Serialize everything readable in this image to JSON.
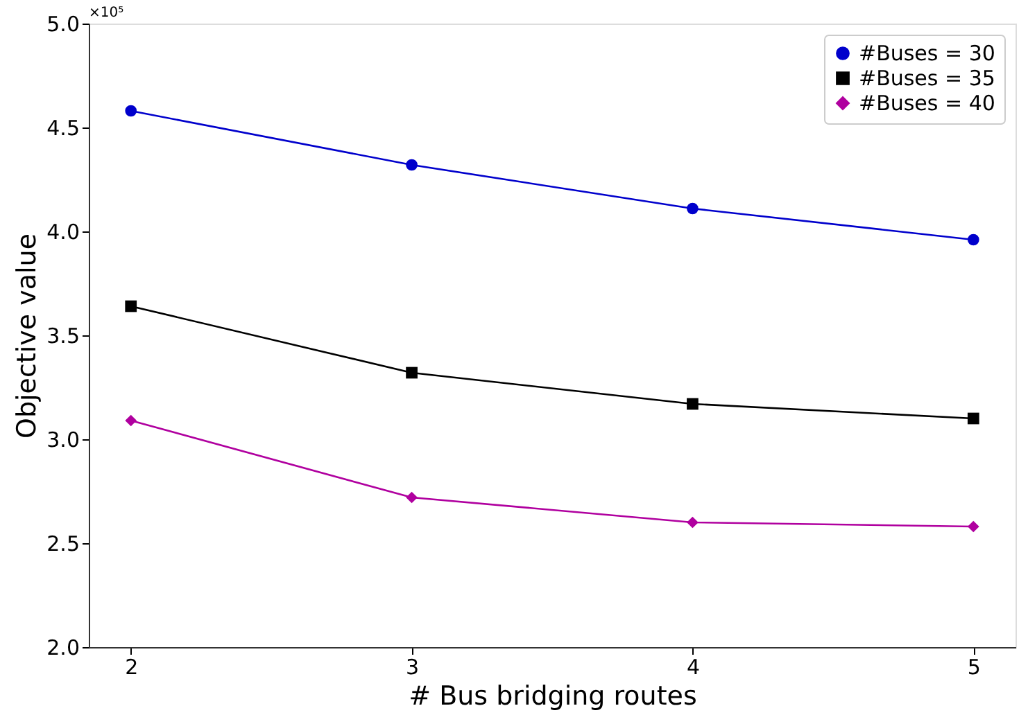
{
  "chart_data": {
    "type": "line",
    "xlabel": "# Bus bridging routes",
    "ylabel": "Objective value",
    "annotations": [
      "×10⁵"
    ],
    "x": [
      2,
      3,
      4,
      5
    ],
    "series": [
      {
        "name": "#Buses = 30",
        "color": "#0000cc",
        "marker": "circle",
        "values": [
          4.58,
          4.32,
          4.11,
          3.96
        ]
      },
      {
        "name": "#Buses = 35",
        "color": "#000000",
        "marker": "square",
        "values": [
          3.64,
          3.32,
          3.17,
          3.1
        ]
      },
      {
        "name": "#Buses = 40",
        "color": "#b0009f",
        "marker": "diamond",
        "values": [
          3.09,
          2.72,
          2.6,
          2.58
        ]
      }
    ],
    "xlim": [
      1.85,
      5.15
    ],
    "xticks": [
      2,
      3,
      4,
      5
    ],
    "ylim": [
      2.0,
      5.0
    ],
    "yticks": [
      {
        "value": 2.0,
        "label": "2.0"
      },
      {
        "value": 2.5,
        "label": "2.5"
      },
      {
        "value": 3.0,
        "label": "3.0"
      },
      {
        "value": 3.5,
        "label": "3.5"
      },
      {
        "value": 4.0,
        "label": "4.0"
      },
      {
        "value": 4.5,
        "label": "4.5"
      },
      {
        "value": 5.0,
        "label": "5.0"
      }
    ],
    "grid": false,
    "legend": "top right",
    "line_style": "solid"
  }
}
